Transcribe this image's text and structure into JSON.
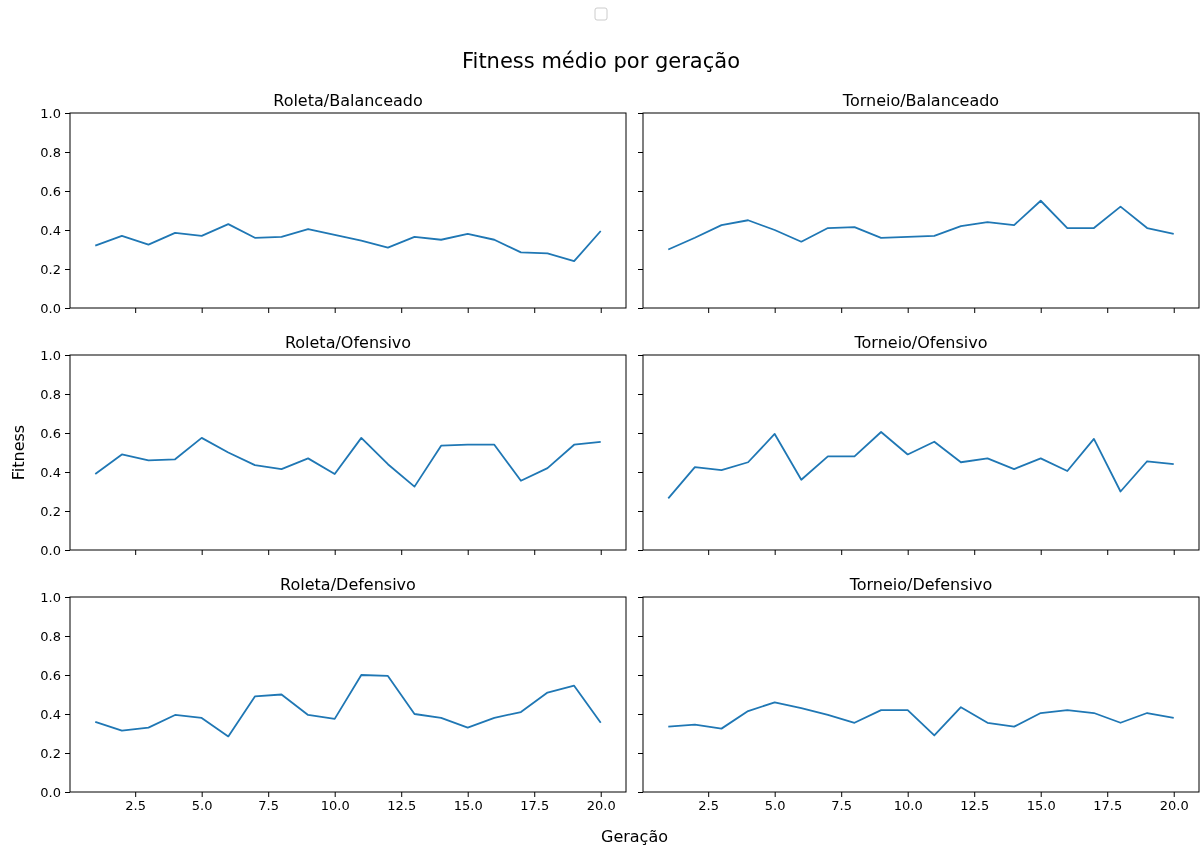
{
  "chart_data": [
    {
      "type": "line",
      "title": "Roleta/Balanceado",
      "annotations": [
        "Fitness médio por geração"
      ],
      "color": "#1f77b4",
      "x": [
        1,
        2,
        3,
        4,
        5,
        6,
        7,
        8,
        9,
        10,
        11,
        12,
        13,
        14,
        15,
        16,
        17,
        18,
        19,
        20
      ],
      "values": [
        0.32,
        0.37,
        0.325,
        0.385,
        0.37,
        0.43,
        0.36,
        0.365,
        0.405,
        0.375,
        0.345,
        0.31,
        0.365,
        0.35,
        0.38,
        0.35,
        0.285,
        0.28,
        0.24,
        0.395
      ],
      "xlim": [
        0.05,
        20.95
      ],
      "xticks": [
        {
          "value": 2.5,
          "label": null
        },
        {
          "value": 5,
          "label": null
        },
        {
          "value": 7.5,
          "label": null
        },
        {
          "value": 10,
          "label": null
        },
        {
          "value": 12.5,
          "label": null
        },
        {
          "value": 15,
          "label": null
        },
        {
          "value": 17.5,
          "label": null
        },
        {
          "value": 20,
          "label": null
        }
      ],
      "ylim": [
        0,
        1
      ],
      "yticks": [
        {
          "value": 0,
          "label": "0.0"
        },
        {
          "value": 0.2,
          "label": "0.2"
        },
        {
          "value": 0.4,
          "label": "0.4"
        },
        {
          "value": 0.6,
          "label": "0.6"
        },
        {
          "value": 0.8,
          "label": "0.8"
        },
        {
          "value": 1,
          "label": "1.0"
        }
      ],
      "tick_labels": "y"
    },
    {
      "type": "line",
      "title": "Torneio/Balanceado",
      "color": "#1f77b4",
      "x": [
        1,
        2,
        3,
        4,
        5,
        6,
        7,
        8,
        9,
        10,
        11,
        12,
        13,
        14,
        15,
        16,
        17,
        18,
        19,
        20
      ],
      "values": [
        0.3,
        0.36,
        0.425,
        0.45,
        0.4,
        0.34,
        0.41,
        0.415,
        0.36,
        0.365,
        0.37,
        0.42,
        0.44,
        0.425,
        0.55,
        0.41,
        0.41,
        0.52,
        0.41,
        0.38
      ],
      "xlim": [
        0.05,
        20.95
      ],
      "xticks": [
        {
          "value": 2.5,
          "label": null
        },
        {
          "value": 5,
          "label": null
        },
        {
          "value": 7.5,
          "label": null
        },
        {
          "value": 10,
          "label": null
        },
        {
          "value": 12.5,
          "label": null
        },
        {
          "value": 15,
          "label": null
        },
        {
          "value": 17.5,
          "label": null
        },
        {
          "value": 20,
          "label": null
        }
      ],
      "ylim": [
        0,
        1
      ],
      "yticks": [
        {
          "value": 0,
          "label": null
        },
        {
          "value": 0.2,
          "label": null
        },
        {
          "value": 0.4,
          "label": null
        },
        {
          "value": 0.6,
          "label": null
        },
        {
          "value": 0.8,
          "label": null
        },
        {
          "value": 1,
          "label": null
        }
      ],
      "tick_labels": false
    },
    {
      "type": "line",
      "title": "Roleta/Ofensivo",
      "ylabel": "Fitness",
      "color": "#1f77b4",
      "x": [
        1,
        2,
        3,
        4,
        5,
        6,
        7,
        8,
        9,
        10,
        11,
        12,
        13,
        14,
        15,
        16,
        17,
        18,
        19,
        20
      ],
      "values": [
        0.39,
        0.49,
        0.46,
        0.465,
        0.575,
        0.5,
        0.435,
        0.415,
        0.47,
        0.39,
        0.575,
        0.44,
        0.325,
        0.535,
        0.54,
        0.54,
        0.355,
        0.42,
        0.54,
        0.555
      ],
      "xlim": [
        0.05,
        20.95
      ],
      "xticks": [
        {
          "value": 2.5,
          "label": null
        },
        {
          "value": 5,
          "label": null
        },
        {
          "value": 7.5,
          "label": null
        },
        {
          "value": 10,
          "label": null
        },
        {
          "value": 12.5,
          "label": null
        },
        {
          "value": 15,
          "label": null
        },
        {
          "value": 17.5,
          "label": null
        },
        {
          "value": 20,
          "label": null
        }
      ],
      "ylim": [
        0,
        1
      ],
      "yticks": [
        {
          "value": 0,
          "label": "0.0"
        },
        {
          "value": 0.2,
          "label": "0.2"
        },
        {
          "value": 0.4,
          "label": "0.4"
        },
        {
          "value": 0.6,
          "label": "0.6"
        },
        {
          "value": 0.8,
          "label": "0.8"
        },
        {
          "value": 1,
          "label": "1.0"
        }
      ],
      "tick_labels": "y"
    },
    {
      "type": "line",
      "title": "Torneio/Ofensivo",
      "color": "#1f77b4",
      "x": [
        1,
        2,
        3,
        4,
        5,
        6,
        7,
        8,
        9,
        10,
        11,
        12,
        13,
        14,
        15,
        16,
        17,
        18,
        19,
        20
      ],
      "values": [
        0.265,
        0.425,
        0.41,
        0.45,
        0.595,
        0.36,
        0.48,
        0.48,
        0.605,
        0.49,
        0.555,
        0.45,
        0.47,
        0.415,
        0.47,
        0.405,
        0.57,
        0.3,
        0.455,
        0.44
      ],
      "xlim": [
        0.05,
        20.95
      ],
      "xticks": [
        {
          "value": 2.5,
          "label": null
        },
        {
          "value": 5,
          "label": null
        },
        {
          "value": 7.5,
          "label": null
        },
        {
          "value": 10,
          "label": null
        },
        {
          "value": 12.5,
          "label": null
        },
        {
          "value": 15,
          "label": null
        },
        {
          "value": 17.5,
          "label": null
        },
        {
          "value": 20,
          "label": null
        }
      ],
      "ylim": [
        0,
        1
      ],
      "yticks": [
        {
          "value": 0,
          "label": null
        },
        {
          "value": 0.2,
          "label": null
        },
        {
          "value": 0.4,
          "label": null
        },
        {
          "value": 0.6,
          "label": null
        },
        {
          "value": 0.8,
          "label": null
        },
        {
          "value": 1,
          "label": null
        }
      ],
      "tick_labels": false
    },
    {
      "type": "line",
      "title": "Roleta/Defensivo",
      "xlabel": "Geração",
      "color": "#1f77b4",
      "x": [
        1,
        2,
        3,
        4,
        5,
        6,
        7,
        8,
        9,
        10,
        11,
        12,
        13,
        14,
        15,
        16,
        17,
        18,
        19,
        20
      ],
      "values": [
        0.36,
        0.315,
        0.33,
        0.395,
        0.38,
        0.285,
        0.49,
        0.5,
        0.395,
        0.375,
        0.6,
        0.595,
        0.4,
        0.38,
        0.33,
        0.38,
        0.41,
        0.51,
        0.545,
        0.355
      ],
      "xlim": [
        0.05,
        20.95
      ],
      "xticks": [
        {
          "value": 2.5,
          "label": "2.5"
        },
        {
          "value": 5,
          "label": "5.0"
        },
        {
          "value": 7.5,
          "label": "7.5"
        },
        {
          "value": 10,
          "label": "10.0"
        },
        {
          "value": 12.5,
          "label": "12.5"
        },
        {
          "value": 15,
          "label": "15.0"
        },
        {
          "value": 17.5,
          "label": "17.5"
        },
        {
          "value": 20,
          "label": "20.0"
        }
      ],
      "ylim": [
        0,
        1
      ],
      "yticks": [
        {
          "value": 0,
          "label": "0.0"
        },
        {
          "value": 0.2,
          "label": "0.2"
        },
        {
          "value": 0.4,
          "label": "0.4"
        },
        {
          "value": 0.6,
          "label": "0.6"
        },
        {
          "value": 0.8,
          "label": "0.8"
        },
        {
          "value": 1,
          "label": "1.0"
        }
      ]
    },
    {
      "type": "line",
      "title": "Torneio/Defensivo",
      "color": "#1f77b4",
      "x": [
        1,
        2,
        3,
        4,
        5,
        6,
        7,
        8,
        9,
        10,
        11,
        12,
        13,
        14,
        15,
        16,
        17,
        18,
        19,
        20
      ],
      "values": [
        0.335,
        0.345,
        0.325,
        0.415,
        0.46,
        0.43,
        0.395,
        0.355,
        0.42,
        0.42,
        0.29,
        0.435,
        0.355,
        0.335,
        0.405,
        0.42,
        0.405,
        0.355,
        0.405,
        0.38
      ],
      "xlim": [
        0.05,
        20.95
      ],
      "xticks": [
        {
          "value": 2.5,
          "label": "2.5"
        },
        {
          "value": 5,
          "label": "5.0"
        },
        {
          "value": 7.5,
          "label": "7.5"
        },
        {
          "value": 10,
          "label": "10.0"
        },
        {
          "value": 12.5,
          "label": "12.5"
        },
        {
          "value": 15,
          "label": "15.0"
        },
        {
          "value": 17.5,
          "label": "17.5"
        },
        {
          "value": 20,
          "label": "20.0"
        }
      ],
      "ylim": [
        0,
        1
      ],
      "yticks": [
        {
          "value": 0,
          "label": null
        },
        {
          "value": 0.2,
          "label": null
        },
        {
          "value": 0.4,
          "label": null
        },
        {
          "value": 0.6,
          "label": null
        },
        {
          "value": 0.8,
          "label": null
        },
        {
          "value": 1,
          "label": null
        }
      ],
      "tick_labels": "x"
    }
  ]
}
